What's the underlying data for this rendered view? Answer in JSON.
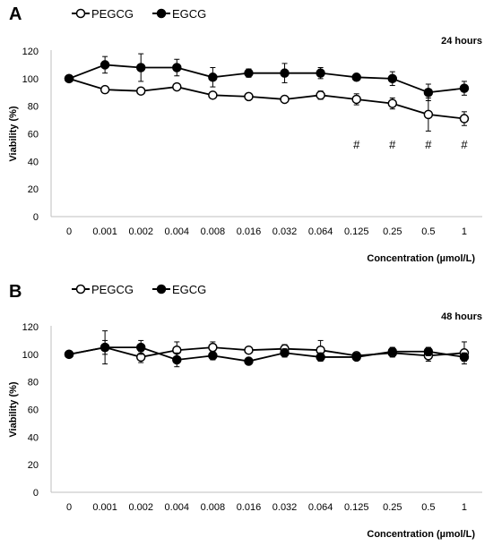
{
  "chart_data": [
    {
      "panel": "A",
      "type": "line",
      "annotation": "24 hours",
      "xlabel": "Concentration (µmol/L)",
      "ylabel": "Viability (%)",
      "categories": [
        "0",
        "0.001",
        "0.002",
        "0.004",
        "0.008",
        "0.016",
        "0.032",
        "0.064",
        "0.125",
        "0.25",
        "0.5",
        "1"
      ],
      "ylim": [
        0,
        120
      ],
      "yticks": [
        0,
        20,
        40,
        60,
        80,
        100,
        120
      ],
      "legend_position": "top-left",
      "series": [
        {
          "name": "PEGCG",
          "marker": "open-circle",
          "values": [
            100,
            92,
            91,
            94,
            88,
            87,
            85,
            88,
            85,
            82,
            74,
            71
          ],
          "errors": [
            0,
            2,
            2,
            2,
            2,
            2,
            2,
            3,
            4,
            4,
            12,
            5
          ]
        },
        {
          "name": "EGCG",
          "marker": "filled-circle",
          "values": [
            100,
            110,
            108,
            108,
            101,
            104,
            104,
            104,
            101,
            100,
            90,
            93
          ],
          "errors": [
            0,
            6,
            10,
            6,
            7,
            3,
            7,
            4,
            2,
            5,
            6,
            5
          ]
        }
      ],
      "significance": [
        {
          "category": "0.125",
          "label": "#"
        },
        {
          "category": "0.25",
          "label": "#"
        },
        {
          "category": "0.5",
          "label": "#"
        },
        {
          "category": "1",
          "label": "#"
        }
      ]
    },
    {
      "panel": "B",
      "type": "line",
      "annotation": "48 hours",
      "xlabel": "Concentration (µmol/L)",
      "ylabel": "Viability (%)",
      "categories": [
        "0",
        "0.001",
        "0.002",
        "0.004",
        "0.008",
        "0.016",
        "0.032",
        "0.064",
        "0.125",
        "0.25",
        "0.5",
        "1"
      ],
      "ylim": [
        0,
        120
      ],
      "yticks": [
        0,
        20,
        40,
        60,
        80,
        100,
        120
      ],
      "legend_position": "top-left",
      "series": [
        {
          "name": "PEGCG",
          "marker": "open-circle",
          "values": [
            100,
            105,
            98,
            103,
            105,
            103,
            104,
            103,
            99,
            101,
            99,
            101
          ],
          "errors": [
            0,
            12,
            4,
            6,
            4,
            2,
            3,
            7,
            2,
            3,
            4,
            8
          ]
        },
        {
          "name": "EGCG",
          "marker": "filled-circle",
          "values": [
            100,
            105,
            105,
            96,
            99,
            95,
            101,
            98,
            98,
            102,
            102,
            98
          ],
          "errors": [
            0,
            5,
            5,
            5,
            3,
            2,
            3,
            3,
            2,
            3,
            3,
            3
          ]
        }
      ],
      "significance": []
    }
  ]
}
